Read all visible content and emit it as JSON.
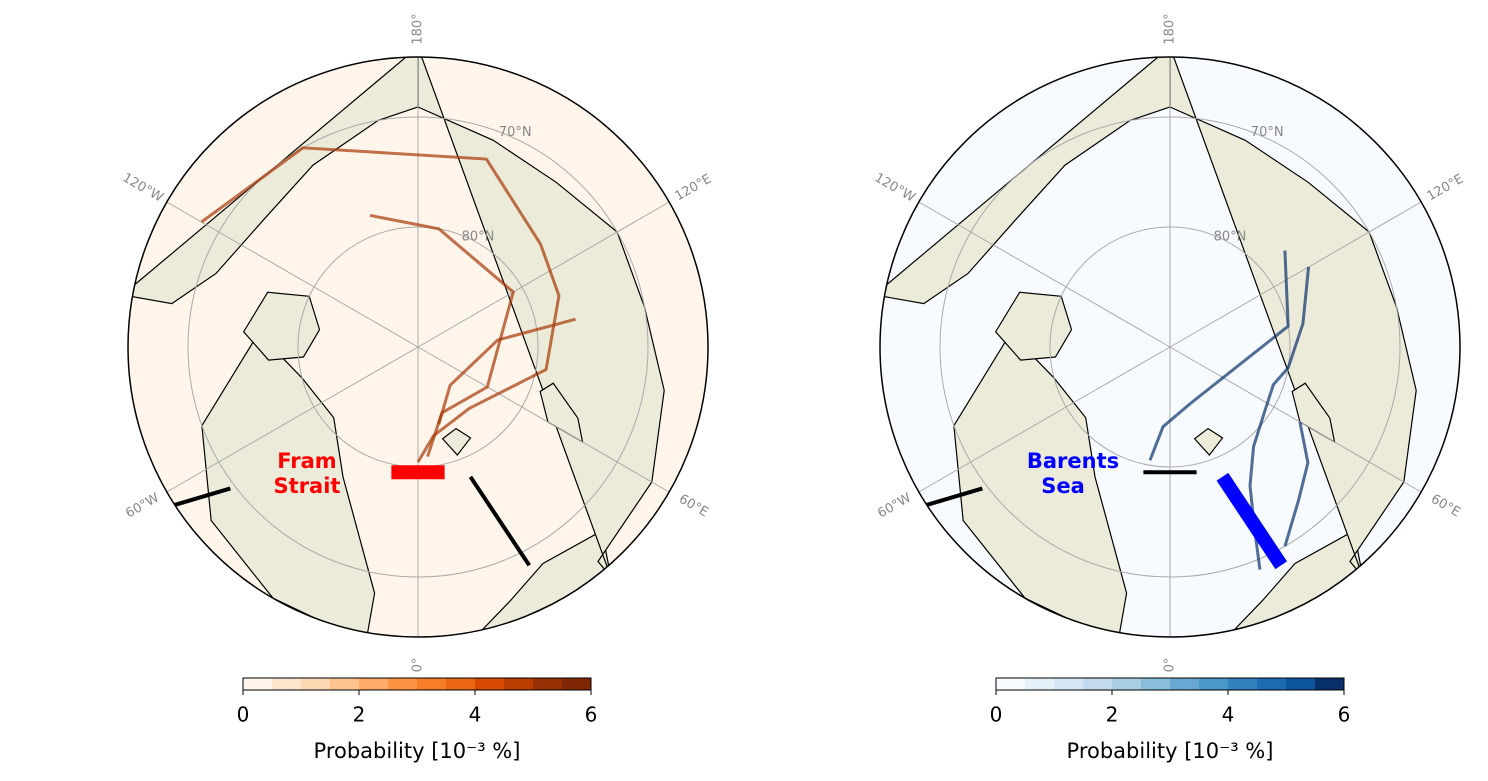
{
  "maps": [
    {
      "region_label": [
        "Fram",
        "Strait"
      ],
      "region_color": "#ff0000",
      "ocean_color": "#fff5eb",
      "path_color": "#a63603",
      "lon_labels": [
        "180°",
        "120°E",
        "60°E",
        "0°",
        "60°W",
        "120°W"
      ],
      "lat_labels": [
        "70°N",
        "80°N"
      ],
      "colorbar": {
        "range": [
          0,
          6
        ],
        "ticks": [
          0,
          2,
          4,
          6
        ],
        "label": "Probability [10⁻³ %]",
        "colors": [
          "#fff5eb",
          "#fee6ce",
          "#fdd8b3",
          "#fdc48f",
          "#fdab67",
          "#fd9243",
          "#f87d29",
          "#ea6612",
          "#d84801",
          "#ba3e02",
          "#983103",
          "#7f2704"
        ]
      }
    },
    {
      "region_label": [
        "Barents",
        "Sea"
      ],
      "region_color": "#0000ff",
      "ocean_color": "#f7fbff",
      "path_color": "#08306b",
      "lon_labels": [
        "180°",
        "120°E",
        "60°E",
        "0°",
        "60°W",
        "120°W"
      ],
      "lat_labels": [
        "70°N",
        "80°N"
      ],
      "colorbar": {
        "range": [
          0,
          6
        ],
        "ticks": [
          0,
          2,
          4,
          6
        ],
        "label": "Probability [10⁻³ %]",
        "colors": [
          "#f7fbff",
          "#e6f0f9",
          "#d6e6f4",
          "#c4daee",
          "#a8cee4",
          "#88bedc",
          "#68a8d2",
          "#4a97c9",
          "#3282be",
          "#1c6aaf",
          "#0c549c",
          "#08306b"
        ]
      }
    }
  ]
}
